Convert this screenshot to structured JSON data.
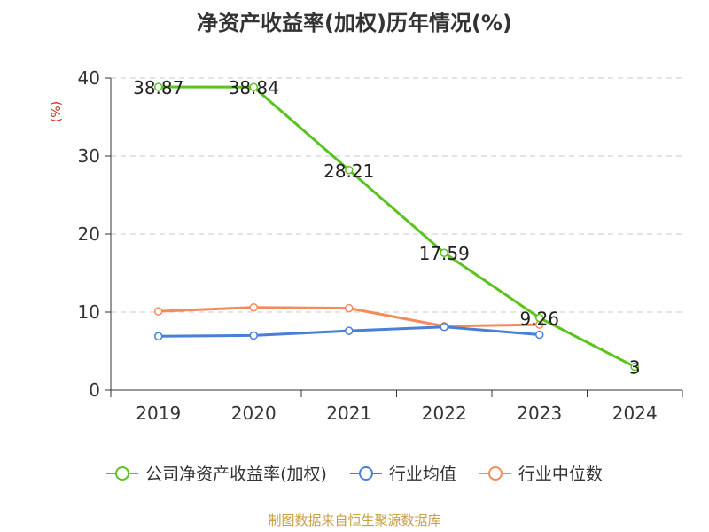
{
  "title": "净资产收益率(加权)历年情况(%)",
  "source_note": "制图数据来自恒生聚源数据库",
  "chart_data": {
    "type": "line",
    "title": "净资产收益率(加权)历年情况(%)",
    "ylabel": "(%)",
    "xlabel": "",
    "categories": [
      "2019",
      "2020",
      "2021",
      "2022",
      "2023",
      "2024"
    ],
    "ylim": [
      0,
      40
    ],
    "yticks": [
      0,
      10,
      20,
      30,
      40
    ],
    "grid": true,
    "legend_position": "bottom",
    "series": [
      {
        "name": "公司净资产收益率(加权)",
        "color": "#5ac31f",
        "values": [
          38.87,
          38.84,
          28.21,
          17.59,
          9.26,
          3
        ],
        "labels": [
          "38.87",
          "38.84",
          "28.21",
          "17.59",
          "9.26",
          "3"
        ]
      },
      {
        "name": "行业均值",
        "color": "#4a7fd8",
        "values": [
          6.9,
          7.0,
          7.6,
          8.1,
          7.1,
          null
        ]
      },
      {
        "name": "行业中位数",
        "color": "#f28c5a",
        "values": [
          10.1,
          10.6,
          10.5,
          8.2,
          8.4,
          null
        ]
      }
    ]
  }
}
